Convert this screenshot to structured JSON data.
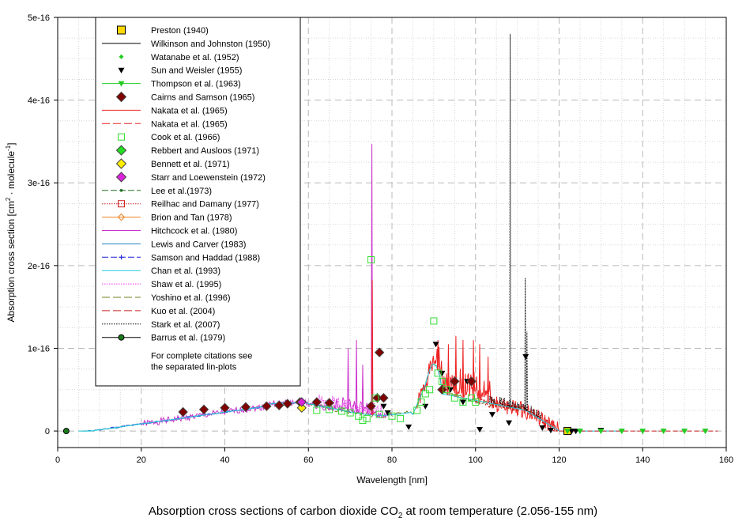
{
  "chart_data": {
    "type": "line",
    "title": "",
    "xlabel": "Wavelength [nm]",
    "ylabel": "Absorption cross section [cm2 · molecule-1]",
    "ylabel_parts": [
      "Absorption cross section [cm",
      "2",
      " · molecule",
      "-1",
      "]"
    ],
    "xlim": [
      0,
      160
    ],
    "ylim": [
      -2e-17,
      5e-16
    ],
    "x_ticks": [
      0,
      20,
      40,
      60,
      80,
      100,
      120,
      140,
      160
    ],
    "x_tick_labels": [
      "0",
      "20",
      "40",
      "60",
      "80",
      "100",
      "120",
      "140",
      "160"
    ],
    "y_ticks": [
      0,
      1e-16,
      2e-16,
      3e-16,
      4e-16,
      5e-16
    ],
    "y_tick_labels": [
      "0",
      "1e-16",
      "2e-16",
      "3e-16",
      "4e-16",
      "5e-16"
    ],
    "grid": true,
    "legend_position": "top-left",
    "series": [
      {
        "name": "Preston (1940)",
        "color": "#ffd700",
        "marker": "square-filled",
        "x": [
          122
        ],
        "y": [
          0
        ]
      },
      {
        "name": "Wilkinson and Johnston (1950)",
        "color": "#000000",
        "marker": "line",
        "x": [],
        "y": []
      },
      {
        "name": "Watanabe et al. (1952)",
        "color": "#22cc22",
        "marker": "diamond-small",
        "x": [],
        "y": []
      },
      {
        "name": "Sun and Weisler (1955)",
        "color": "#000000",
        "marker": "triangle-down-filled",
        "x": [
          78,
          79,
          84,
          88,
          90.5,
          92,
          94,
          97,
          98,
          101,
          104,
          108,
          112,
          116,
          118,
          123,
          124,
          130
        ],
        "y": [
          3e-17,
          2.2e-17,
          5e-18,
          3e-17,
          1.05e-16,
          7e-17,
          5e-17,
          3.5e-17,
          6e-17,
          2e-18,
          2e-17,
          1e-17,
          9e-17,
          4e-18,
          1e-18,
          0,
          0,
          1e-18
        ]
      },
      {
        "name": "Thompson et al. (1963)",
        "color": "#22cc22",
        "marker": "triangle-down-filled",
        "x": [
          122,
          125,
          130,
          135,
          140,
          145,
          150,
          155
        ],
        "y": [
          0,
          0,
          0,
          0,
          0,
          0,
          0,
          0
        ]
      },
      {
        "name": "Cairns and Samson (1965)",
        "color": "#800000",
        "marker": "diamond-filled",
        "x": [
          30,
          35,
          40,
          45,
          50,
          53,
          55,
          58,
          62,
          65,
          75,
          76.5,
          77,
          78,
          92,
          95,
          99
        ],
        "y": [
          2.3e-17,
          2.6e-17,
          2.8e-17,
          2.9e-17,
          3e-17,
          3.1e-17,
          3.3e-17,
          3.5e-17,
          3.5e-17,
          3.4e-17,
          3e-17,
          4e-17,
          9.5e-17,
          4e-17,
          5e-17,
          6e-17,
          6e-17
        ]
      },
      {
        "name": "Nakata et al. (1965)",
        "color": "#ee2222",
        "marker": "line",
        "x": [],
        "y": []
      },
      {
        "name": "Nakata et al. (1965)",
        "color": "#ee2222",
        "marker": "dash",
        "x": [],
        "y": []
      },
      {
        "name": "Cook et al. (1966)",
        "color": "#33dd33",
        "marker": "square-open",
        "x": [
          62,
          65,
          68,
          70,
          72,
          73,
          74,
          75,
          76,
          77,
          80,
          82,
          86,
          87,
          88,
          89,
          90,
          91,
          92,
          93,
          95,
          97,
          99,
          100
        ],
        "y": [
          2.5e-17,
          2.6e-17,
          2.4e-17,
          2.2e-17,
          1.8e-17,
          1.3e-17,
          1.5e-17,
          2.07e-16,
          4e-17,
          2e-17,
          1.8e-17,
          1.5e-17,
          2.5e-17,
          3.5e-17,
          4.5e-17,
          5e-17,
          1.33e-16,
          7e-17,
          6e-17,
          5e-17,
          4e-17,
          3.5e-17,
          4e-17,
          3.5e-17
        ]
      },
      {
        "name": "Rebbert and Ausloos (1971)",
        "color": "#22dd22",
        "marker": "diamond-filled",
        "x": [],
        "y": []
      },
      {
        "name": "Bennett et al. (1971)",
        "color": "#ffee00",
        "marker": "diamond-filled",
        "x": [
          58.4
        ],
        "y": [
          2.8e-17
        ]
      },
      {
        "name": "Starr and Loewenstein (1972)",
        "color": "#dd22dd",
        "marker": "diamond-filled",
        "x": [
          58.4
        ],
        "y": [
          3.5e-17
        ]
      },
      {
        "name": "Lee et al.(1973)",
        "color": "#207020",
        "marker": "dash-dot",
        "x": [],
        "y": []
      },
      {
        "name": "Reilhac and Damany (1977)",
        "color": "#cc2222",
        "marker": "dotted-square",
        "x": [],
        "y": []
      },
      {
        "name": "Brion and Tan (1978)",
        "color": "#f08020",
        "marker": "diamond-open",
        "x": [],
        "y": []
      },
      {
        "name": "Hitchcock et al. (1980)",
        "color": "#cc33cc",
        "marker": "line",
        "x": [],
        "y": []
      },
      {
        "name": "Lewis and Carver (1983)",
        "color": "#2080c0",
        "marker": "line",
        "x": [],
        "y": []
      },
      {
        "name": "Samson and Haddad (1988)",
        "color": "#2020dd",
        "marker": "dash-plus",
        "x": [],
        "y": []
      },
      {
        "name": "Chan et al. (1993)",
        "color": "#20c8d8",
        "marker": "line",
        "x": [
          5,
          10,
          15,
          20,
          25,
          30,
          35,
          40,
          45,
          50,
          55,
          60,
          65,
          70,
          72,
          75,
          80,
          82,
          84,
          86,
          88,
          90,
          92,
          95,
          100,
          105,
          110,
          113,
          116,
          120,
          125,
          130
        ],
        "y": [
          0,
          3e-18,
          7e-18,
          1.1e-17,
          1.6e-17,
          2.1e-17,
          2.5e-17,
          2.8e-17,
          3e-17,
          3.1e-17,
          3.2e-17,
          3.2e-17,
          3.1e-17,
          3e-17,
          2.8e-17,
          2.3e-17,
          2e-17,
          2.2e-17,
          3e-17,
          4.5e-17,
          6e-17,
          7e-17,
          6.5e-17,
          5.5e-17,
          4.5e-17,
          3.5e-17,
          2.5e-17,
          2e-17,
          1.2e-17,
          4e-18,
          1e-18,
          0
        ]
      },
      {
        "name": "Shaw et al. (1995)",
        "color": "#ee33ee",
        "marker": "dotted",
        "x": [],
        "y": []
      },
      {
        "name": "Yoshino et al. (1996)",
        "color": "#708020",
        "marker": "dash",
        "x": [],
        "y": []
      },
      {
        "name": "Kuo et al. (2004)",
        "color": "#cc2222",
        "marker": "dash",
        "x": [],
        "y": []
      },
      {
        "name": "Stark et al. (2007)",
        "color": "#000000",
        "marker": "dotted",
        "x": [],
        "y": []
      },
      {
        "name": "Barrus et al. (1979)",
        "color": "#1a7a1a",
        "marker": "circle-filled",
        "x": [
          2.056
        ],
        "y": [
          0
        ]
      }
    ],
    "legend_note_lines": [
      "For complete citations see",
      "the separated lin-plots"
    ]
  },
  "caption": {
    "before_sub": "Absorption cross sections of carbon dioxide CO",
    "sub": "2",
    "after_sub": " at room temperature (2.056-155 nm)"
  }
}
